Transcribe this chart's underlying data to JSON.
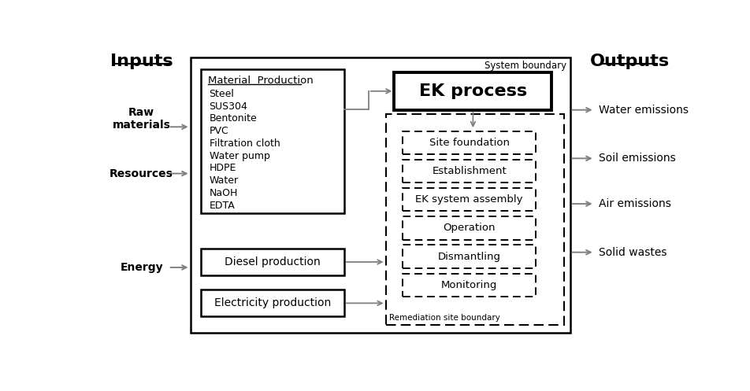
{
  "bg_color": "#ffffff",
  "inputs_label": "Inputs",
  "outputs_label": "Outputs",
  "system_boundary_label": "System boundary",
  "remediation_site_label": "Remediation site boundary",
  "material_production_label": "Material  Production",
  "materials_list": [
    "Steel",
    "SUS304",
    "Bentonite",
    "PVC",
    "Filtration cloth",
    "Water pump",
    "HDPE",
    "Water",
    "NaOH",
    "EDTA"
  ],
  "ek_process_label": "EK process",
  "dashed_boxes": [
    "Site foundation",
    "Establishment",
    "EK system assembly",
    "Operation",
    "Dismantling",
    "Monitoring"
  ],
  "energy_boxes": [
    "Diesel production",
    "Electricity production"
  ],
  "left_labels": [
    "Raw\nmaterials",
    "Resources",
    "Energy"
  ],
  "right_labels": [
    "Water emissions",
    "Soil emissions",
    "Air emissions",
    "Solid wastes"
  ]
}
